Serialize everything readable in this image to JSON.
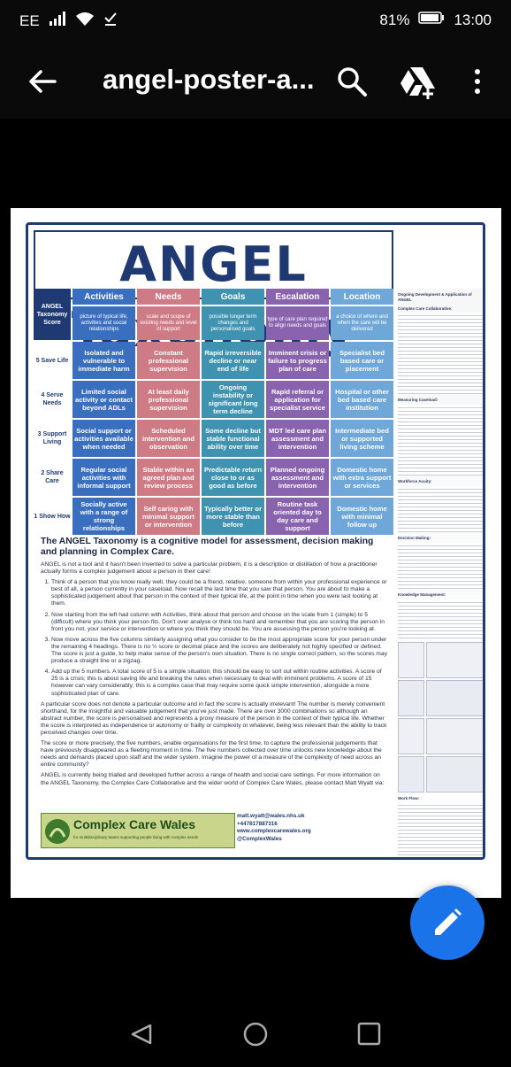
{
  "status": {
    "carrier": "EE",
    "battery": "81%",
    "time": "13:00"
  },
  "app": {
    "title": "angel-poster-a..."
  },
  "poster": {
    "title": "ANGEL Taxonomy",
    "corner": "ANGEL Taxonomy Score",
    "columns": [
      {
        "name": "Activities",
        "desc": "picture of typical life, activities and social relationships"
      },
      {
        "name": "Needs",
        "desc": "scale and scope of existing needs and level of support"
      },
      {
        "name": "Goals",
        "desc": "possible longer term changes and personalised goals"
      },
      {
        "name": "Escalation",
        "desc": "type of care plan required to align needs and goals"
      },
      {
        "name": "Location",
        "desc": "a choice of where and when the care will be delivered"
      }
    ],
    "rows": [
      {
        "label": "5 Save Life",
        "cells": [
          "Isolated and vulnerable to immediate harm",
          "Constant professional supervision",
          "Rapid irreversible decline or near end of life",
          "Imminent crisis or failure to progress plan of care",
          "Specialist bed based care or placement"
        ]
      },
      {
        "label": "4 Serve Needs",
        "cells": [
          "Limited social activity or contact beyond ADLs",
          "At least daily professional supervision",
          "Ongoing instability or significant long term decline",
          "Rapid referral or application for specialist service",
          "Hospital or other bed based care institution"
        ]
      },
      {
        "label": "3 Support Living",
        "cells": [
          "Social support or activities available when needed",
          "Scheduled intervention and observation",
          "Some decline but stable functional ability over time",
          "MDT led care plan assessment and intervention",
          "Intermediate bed or supported living scheme"
        ]
      },
      {
        "label": "2 Share Care",
        "cells": [
          "Regular social activities with informal support",
          "Stable within an agreed plan and review process",
          "Predictable return close to or as good as before",
          "Planned ongoing assessment and intervention",
          "Domestic home with extra support or services"
        ]
      },
      {
        "label": "1 Show How",
        "cells": [
          "Socially active with a range of strong relationships",
          "Self caring with minimal support or intervention",
          "Typically better or more stable than before",
          "Routine task oriented day to day care and support",
          "Domestic home with minimal follow up"
        ]
      }
    ],
    "heading": "The ANGEL Taxonomy is a cognitive model for assessment, decision making and planning in Complex Care.",
    "intro": "ANGEL is not a tool and it hasn't been invented to solve a particular problem, it is a description or distillation of how a practitioner actually forms a complex judgement about a person in their care!",
    "steps": [
      "Think of a person that you know really well, they could be a friend, relative, someone from within your professional experience or best of all, a person currently in your caseload. Now recall the last time that you saw that person. You are about to make a sophisticated judgement about that person in the context of their typical life, at the point in time when you were last looking at them.",
      "Now starting from the left had column with Activities, think about that person and choose on the scale from 1 (simple) to 5 (difficult) where you think your person fits. Don't over analyse or think too hard and remember that you are scoring the person in front you not, your service or intervention or where you think they should be. You are assessing the person you're looking at.",
      "Now move across the five columns similarly assigning what you consider to be the most appropriate score for your person under the remaining 4 headings. There is no ½ score or decimal place and the scores are deliberately not highly specified or defined. The score is just a guide, to help make sense of the person's own situation. There is no single correct pattern, so the scores may produce a straight line or a zigzag.",
      "Add up the 5 numbers. A total score of 5 is a simple situation; this should be easy to sort out within routine activities. A score of 25 is a crisis; this is about saving life and breaking the rules when necessary to deal with imminent problems. A score of 15 however can vary considerably; this is a complex case that may require some quick simple intervention, alongside a more sophisticated plan of care."
    ],
    "para1": "A particular score does not denote a particular outcome and in fact the score is actually irrelevant! The number is merely convenient shorthand, for the insightful and valuable judgement that you've just made. There are over 3000 combinations so although an abstract number, the score is personalised and represents a proxy measure of the person in the context of their typical life. Whether the score is interpreted as independence or autonomy or frailty or complexity or whatever, being less relevant than the ability to track perceived changes over time.",
    "para2": "The score or more precisely, the five numbers, enable organisations for the first time, to capture the professional judgements that have previously disappeared as a fleeting moment in time. The five numbers collected over time unlocks new knowledge about the needs and demands placed upon staff and the wider system. Imagine the power of a measure of the complexity of need across an entire community?",
    "para3": "ANGEL is currently being trialled and developed further across a range of health and social care settings. For more information on the ANGEL Taxonomy, the Complex Care Collaborative and the wider world of Complex Care Wales, please contact Matt Wyatt via:",
    "logo_name": "Complex Care Wales",
    "logo_tag": "for multidisciplinary teams supporting people living with complex needs",
    "email": "matt.wyatt@wales.nhs.uk",
    "phone": "+447817887316",
    "web": "www.complexcarewales.org",
    "twitter": "@ComplexWales",
    "side": {
      "h1": "Ongoing Development & Application of ANGEL",
      "h2": "Complex Care Collaborative:",
      "h3": "Measuring Caseload:",
      "h4": "Workforce Acuity:",
      "h5": "Decision Making:",
      "h6": "Knowledge Management:",
      "h7": "Work Flow:"
    }
  },
  "colors": {
    "accent": "#1a73e8",
    "navy": "#1f3a72",
    "activities": "#3a6fc0",
    "needs": "#cf7b86",
    "goals": "#3f93b0",
    "escalation": "#8a63ae",
    "location": "#6fa7d8"
  }
}
